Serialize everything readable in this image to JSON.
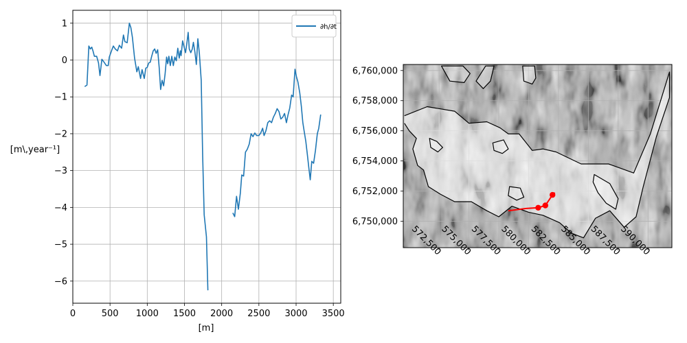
{
  "chart_data": [
    {
      "type": "line",
      "title": "",
      "xlabel": "[m]",
      "ylabel": "[m\\,year$^{-1}$]",
      "ylabel_display": "[m\\,year⁻¹]",
      "xlim": [
        0,
        3600
      ],
      "ylim": [
        -6.6,
        1.35
      ],
      "xticks": [
        0,
        500,
        1000,
        1500,
        2000,
        2500,
        3000,
        3500
      ],
      "yticks": [
        1,
        0,
        -1,
        -2,
        -3,
        -4,
        -5,
        -6
      ],
      "ytick_labels": [
        "1",
        "0",
        "−1",
        "−2",
        "−3",
        "−4",
        "−5",
        "−6"
      ],
      "grid": true,
      "legend_position": "top-right",
      "series": [
        {
          "name": "∂h/∂t",
          "color": "#1f77b4",
          "segments": [
            [
              [
                160,
                -0.72
              ],
              [
                190,
                -0.68
              ],
              [
                215,
                0.38
              ],
              [
                235,
                0.3
              ],
              [
                255,
                0.35
              ],
              [
                270,
                0.25
              ],
              [
                290,
                0.1
              ],
              [
                320,
                0.1
              ],
              [
                345,
                -0.08
              ],
              [
                365,
                -0.42
              ],
              [
                390,
                0.02
              ],
              [
                420,
                -0.06
              ],
              [
                450,
                -0.15
              ],
              [
                475,
                -0.15
              ],
              [
                490,
                0.08
              ],
              [
                520,
                0.25
              ],
              [
                545,
                0.38
              ],
              [
                570,
                0.3
              ],
              [
                600,
                0.25
              ],
              [
                625,
                0.4
              ],
              [
                655,
                0.32
              ],
              [
                680,
                0.68
              ],
              [
                700,
                0.5
              ],
              [
                730,
                0.47
              ],
              [
                760,
                1.0
              ],
              [
                780,
                0.88
              ],
              [
                800,
                0.62
              ],
              [
                830,
                0.05
              ],
              [
                860,
                -0.32
              ],
              [
                880,
                -0.18
              ],
              [
                910,
                -0.5
              ],
              [
                930,
                -0.26
              ],
              [
                960,
                -0.5
              ],
              [
                980,
                -0.22
              ],
              [
                1000,
                -0.2
              ],
              [
                1020,
                -0.08
              ],
              [
                1040,
                -0.06
              ],
              [
                1060,
                0.1
              ],
              [
                1080,
                0.25
              ],
              [
                1100,
                0.3
              ],
              [
                1120,
                0.18
              ],
              [
                1140,
                0.28
              ],
              [
                1160,
                -0.2
              ],
              [
                1180,
                -0.8
              ],
              [
                1200,
                -0.55
              ],
              [
                1220,
                -0.7
              ],
              [
                1240,
                -0.38
              ],
              [
                1260,
                0.08
              ],
              [
                1275,
                -0.1
              ],
              [
                1290,
                0.1
              ],
              [
                1310,
                -0.15
              ],
              [
                1330,
                0.1
              ],
              [
                1350,
                -0.15
              ],
              [
                1370,
                0.08
              ],
              [
                1390,
                -0.02
              ],
              [
                1410,
                0.32
              ],
              [
                1430,
                0.05
              ],
              [
                1445,
                0.25
              ],
              [
                1455,
                0.12
              ],
              [
                1475,
                0.52
              ],
              [
                1490,
                0.4
              ],
              [
                1515,
                0.2
              ],
              [
                1535,
                0.5
              ],
              [
                1550,
                0.75
              ],
              [
                1565,
                0.3
              ],
              [
                1585,
                0.2
              ],
              [
                1605,
                0.3
              ],
              [
                1620,
                0.48
              ],
              [
                1640,
                0.22
              ],
              [
                1660,
                -0.12
              ],
              [
                1680,
                0.58
              ],
              [
                1700,
                0.18
              ],
              [
                1725,
                -0.55
              ],
              [
                1745,
                -2.6
              ],
              [
                1765,
                -4.2
              ],
              [
                1795,
                -4.8
              ],
              [
                1815,
                -6.25
              ]
            ],
            [
              [
                2150,
                -4.15
              ],
              [
                2175,
                -4.25
              ],
              [
                2200,
                -3.7
              ],
              [
                2225,
                -4.05
              ],
              [
                2250,
                -3.62
              ],
              [
                2270,
                -3.12
              ],
              [
                2295,
                -3.15
              ],
              [
                2320,
                -2.5
              ],
              [
                2345,
                -2.42
              ],
              [
                2370,
                -2.28
              ],
              [
                2395,
                -2.0
              ],
              [
                2420,
                -2.08
              ],
              [
                2445,
                -1.98
              ],
              [
                2470,
                -2.05
              ],
              [
                2500,
                -2.05
              ],
              [
                2525,
                -1.98
              ],
              [
                2550,
                -1.85
              ],
              [
                2570,
                -2.05
              ],
              [
                2595,
                -1.92
              ],
              [
                2620,
                -1.7
              ],
              [
                2645,
                -1.65
              ],
              [
                2670,
                -1.7
              ],
              [
                2695,
                -1.55
              ],
              [
                2720,
                -1.45
              ],
              [
                2745,
                -1.32
              ],
              [
                2770,
                -1.4
              ],
              [
                2795,
                -1.6
              ],
              [
                2820,
                -1.55
              ],
              [
                2845,
                -1.45
              ],
              [
                2870,
                -1.7
              ],
              [
                2890,
                -1.5
              ],
              [
                2915,
                -1.3
              ],
              [
                2940,
                -0.95
              ],
              [
                2960,
                -1.0
              ],
              [
                2985,
                -0.25
              ],
              [
                3005,
                -0.45
              ],
              [
                3025,
                -0.6
              ],
              [
                3050,
                -0.9
              ],
              [
                3070,
                -1.25
              ],
              [
                3090,
                -1.7
              ],
              [
                3110,
                -1.95
              ],
              [
                3130,
                -2.2
              ],
              [
                3150,
                -2.55
              ],
              [
                3170,
                -2.9
              ],
              [
                3190,
                -3.25
              ],
              [
                3210,
                -2.75
              ],
              [
                3235,
                -2.8
              ],
              [
                3260,
                -2.45
              ],
              [
                3285,
                -2.0
              ],
              [
                3305,
                -1.85
              ],
              [
                3330,
                -1.48
              ]
            ]
          ]
        }
      ]
    },
    {
      "type": "map",
      "title": "",
      "xlim": [
        569500,
        592000
      ],
      "ylim": [
        6748250,
        6760400
      ],
      "xticks": [
        572500,
        575000,
        577500,
        580000,
        582500,
        585000,
        587500,
        590000
      ],
      "xtick_labels": [
        "572,500",
        "575,000",
        "577,500",
        "580,000",
        "582,500",
        "585,000",
        "587,500",
        "590,000"
      ],
      "yticks": [
        6760000,
        6758000,
        6756000,
        6754000,
        6752000,
        6750000
      ],
      "ytick_labels": [
        "6,760,000",
        "6,758,000",
        "6,756,000",
        "6,754,000",
        "6,752,000",
        "6,750,000"
      ],
      "grid": true,
      "background": "grayscale hillshade",
      "outline_color": "#000000",
      "profile_color": "#ff0000",
      "profile_line": [
        [
          578300,
          6750700
        ],
        [
          579800,
          6750850
        ],
        [
          580800,
          6750900
        ],
        [
          581400,
          6751050
        ],
        [
          582000,
          6751750
        ],
        [
          582200,
          6751900
        ]
      ],
      "profile_markers": [
        [
          580800,
          6750900
        ],
        [
          581400,
          6751050
        ],
        [
          582000,
          6751750
        ]
      ],
      "outlines": [
        [
          [
            569600,
            6757000
          ],
          [
            571500,
            6757600
          ],
          [
            573800,
            6757300
          ],
          [
            575000,
            6756500
          ],
          [
            576500,
            6756600
          ],
          [
            577600,
            6756200
          ],
          [
            578300,
            6755800
          ],
          [
            579200,
            6755800
          ],
          [
            580300,
            6754700
          ],
          [
            581200,
            6754800
          ],
          [
            582300,
            6754600
          ],
          [
            584400,
            6753800
          ],
          [
            586700,
            6753800
          ],
          [
            588800,
            6753200
          ],
          [
            590200,
            6755800
          ],
          [
            591800,
            6759900
          ],
          [
            591800,
            6758200
          ],
          [
            590700,
            6755600
          ],
          [
            589600,
            6752300
          ],
          [
            589000,
            6750300
          ],
          [
            588000,
            6749600
          ],
          [
            586800,
            6750700
          ],
          [
            585600,
            6750200
          ],
          [
            584600,
            6748900
          ],
          [
            583600,
            6749200
          ],
          [
            582600,
            6749900
          ],
          [
            581200,
            6750400
          ],
          [
            580000,
            6750600
          ],
          [
            578600,
            6751000
          ],
          [
            577500,
            6750300
          ],
          [
            576500,
            6750700
          ],
          [
            575200,
            6751300
          ],
          [
            573800,
            6751300
          ],
          [
            572600,
            6751800
          ],
          [
            571600,
            6752300
          ],
          [
            571200,
            6753400
          ],
          [
            570700,
            6753700
          ],
          [
            570300,
            6754800
          ],
          [
            570600,
            6755500
          ],
          [
            570000,
            6756000
          ],
          [
            569600,
            6756500
          ]
        ],
        [
          [
            572700,
            6760300
          ],
          [
            573400,
            6759300
          ],
          [
            574600,
            6759200
          ],
          [
            575100,
            6759800
          ],
          [
            574500,
            6760300
          ]
        ],
        [
          [
            576400,
            6760300
          ],
          [
            575600,
            6759300
          ],
          [
            576200,
            6758800
          ],
          [
            576800,
            6759300
          ],
          [
            577100,
            6760300
          ]
        ],
        [
          [
            579500,
            6760300
          ],
          [
            579600,
            6759300
          ],
          [
            580300,
            6759100
          ],
          [
            580600,
            6759500
          ],
          [
            580500,
            6760300
          ]
        ],
        [
          [
            585500,
            6753100
          ],
          [
            586800,
            6752500
          ],
          [
            587500,
            6751500
          ],
          [
            587300,
            6750800
          ],
          [
            586500,
            6751200
          ],
          [
            585800,
            6751900
          ],
          [
            585400,
            6752600
          ]
        ],
        [
          [
            578400,
            6752300
          ],
          [
            579300,
            6752200
          ],
          [
            579600,
            6751600
          ],
          [
            579000,
            6751400
          ],
          [
            578300,
            6751700
          ]
        ],
        [
          [
            571700,
            6755500
          ],
          [
            572300,
            6755300
          ],
          [
            572800,
            6754900
          ],
          [
            572400,
            6754600
          ],
          [
            571800,
            6754900
          ]
        ],
        [
          [
            577000,
            6755200
          ],
          [
            577900,
            6755400
          ],
          [
            578300,
            6754800
          ],
          [
            577800,
            6754500
          ],
          [
            577100,
            6754700
          ]
        ]
      ]
    }
  ]
}
